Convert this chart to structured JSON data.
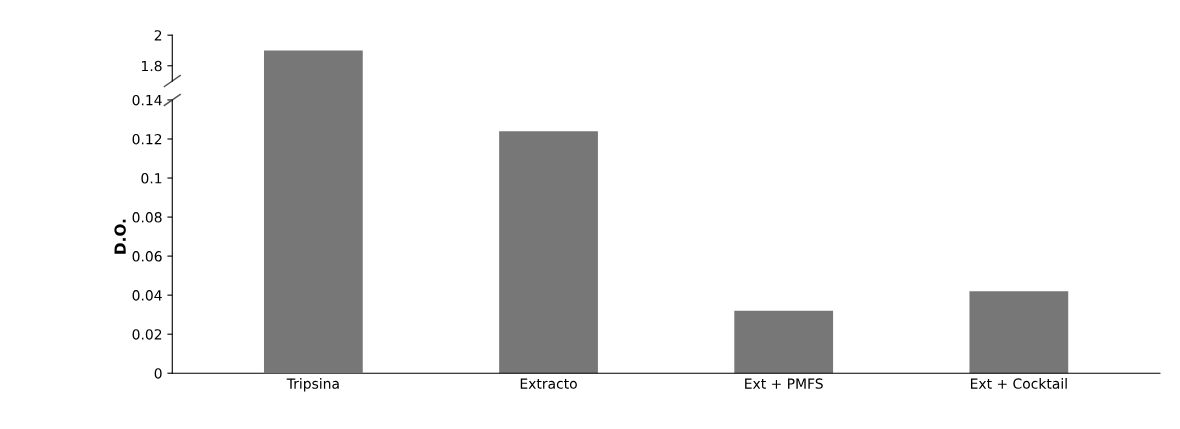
{
  "chart_data": [
    {
      "type": "bar",
      "categories": [
        null,
        null,
        null,
        null
      ],
      "values": [
        1.9,
        null,
        null,
        null
      ],
      "color": "#777777",
      "ylim": [
        1.7,
        2
      ],
      "yticks": [
        1.8,
        2
      ],
      "tick_labels": "y",
      "grid": false
    },
    {
      "type": "bar",
      "ylabel": "D.O.",
      "categories": [
        "Tripsina",
        "Extracto",
        "Ext + PMFS",
        "Ext + Cocktail"
      ],
      "values": [
        null,
        0.124,
        0.032,
        0.042
      ],
      "color": "#777777",
      "ylim": [
        0,
        0.14
      ],
      "yticks": [
        0,
        0.02,
        0.04,
        0.06,
        0.08,
        0.1,
        0.12,
        0.14
      ],
      "grid": false
    }
  ]
}
